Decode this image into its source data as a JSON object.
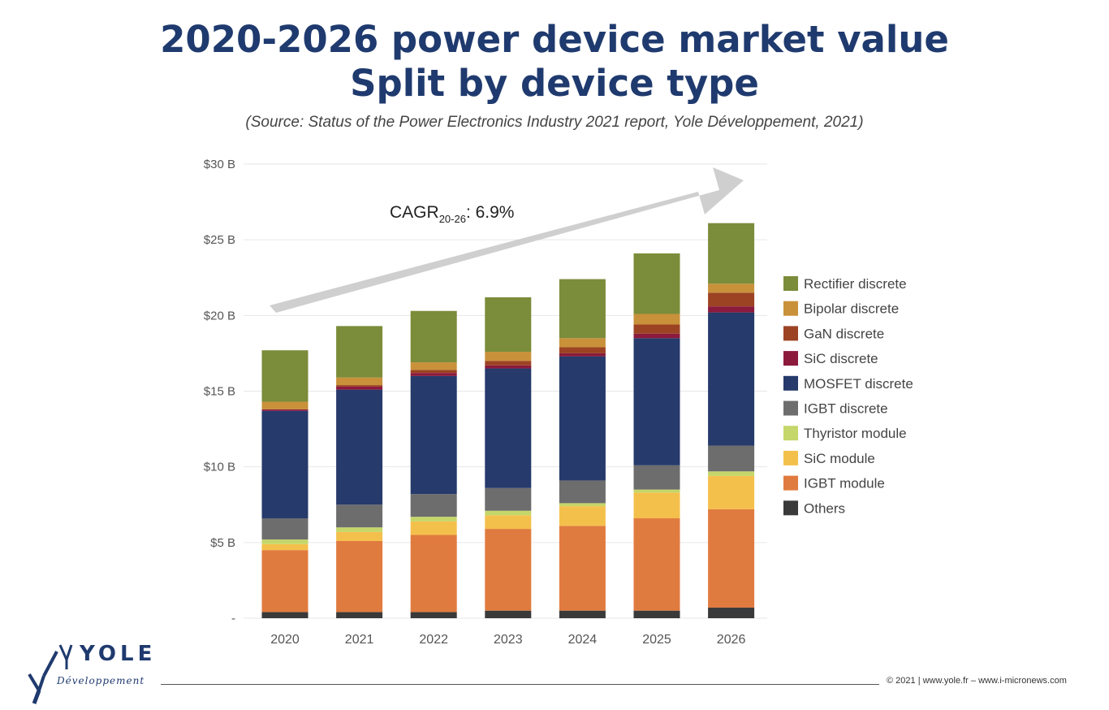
{
  "header": {
    "title_line1": "2020-2026 power device market value",
    "title_line2": "Split by device type",
    "source": "(Source: Status of the Power Electronics Industry 2021 report, Yole Développement, 2021)"
  },
  "chart_data": {
    "type": "bar",
    "stacked": true,
    "categories": [
      "2020",
      "2021",
      "2022",
      "2023",
      "2024",
      "2025",
      "2026"
    ],
    "ylim": [
      0,
      30
    ],
    "yticks": [
      0,
      5,
      10,
      15,
      20,
      25,
      30
    ],
    "ytick_labels": [
      "-",
      "$5 B",
      "$10 B",
      "$15 B",
      "$20 B",
      "$25 B",
      "$30 B"
    ],
    "ylabel": "",
    "xlabel": "",
    "legend_position": "right",
    "annotation": {
      "base": "CAGR",
      "sub": "20-26",
      "suffix": ": 6.9%"
    },
    "series": [
      {
        "name": "Others",
        "color": "#3a3a3a",
        "values": [
          0.4,
          0.4,
          0.4,
          0.5,
          0.5,
          0.5,
          0.7
        ]
      },
      {
        "name": "IGBT module",
        "color": "#e07b3f",
        "values": [
          4.1,
          4.7,
          5.1,
          5.4,
          5.6,
          6.1,
          6.5
        ]
      },
      {
        "name": "SiC module",
        "color": "#f4c04c",
        "values": [
          0.4,
          0.6,
          0.9,
          0.9,
          1.3,
          1.7,
          2.2
        ]
      },
      {
        "name": "Thyristor module",
        "color": "#c5d66a",
        "values": [
          0.3,
          0.3,
          0.3,
          0.3,
          0.2,
          0.2,
          0.3
        ]
      },
      {
        "name": "IGBT discrete",
        "color": "#6d6d6d",
        "values": [
          1.4,
          1.5,
          1.5,
          1.5,
          1.5,
          1.6,
          1.7
        ]
      },
      {
        "name": "MOSFET discrete",
        "color": "#263a6b",
        "values": [
          7.1,
          7.6,
          7.8,
          7.9,
          8.2,
          8.4,
          8.8
        ]
      },
      {
        "name": "SiC discrete",
        "color": "#8b1a3d",
        "values": [
          0.1,
          0.2,
          0.2,
          0.2,
          0.2,
          0.3,
          0.4
        ]
      },
      {
        "name": "GaN discrete",
        "color": "#9c4324",
        "values": [
          0.0,
          0.1,
          0.2,
          0.3,
          0.4,
          0.6,
          0.9
        ]
      },
      {
        "name": "Bipolar discrete",
        "color": "#c8913a",
        "values": [
          0.5,
          0.5,
          0.5,
          0.6,
          0.6,
          0.7,
          0.6
        ]
      },
      {
        "name": "Rectifier discrete",
        "color": "#7b8c3a",
        "values": [
          3.4,
          3.4,
          3.4,
          3.6,
          3.9,
          4.0,
          4.0
        ]
      }
    ]
  },
  "logo": {
    "name": "YOLE",
    "tagline": "Développement"
  },
  "footer": {
    "copyright": "© 2021 | www.yole.fr – www.i-micronews.com"
  },
  "colors": {
    "title": "#1f3a6e",
    "grid": "#e6e6e6",
    "arrow": "#cfcfcf"
  }
}
